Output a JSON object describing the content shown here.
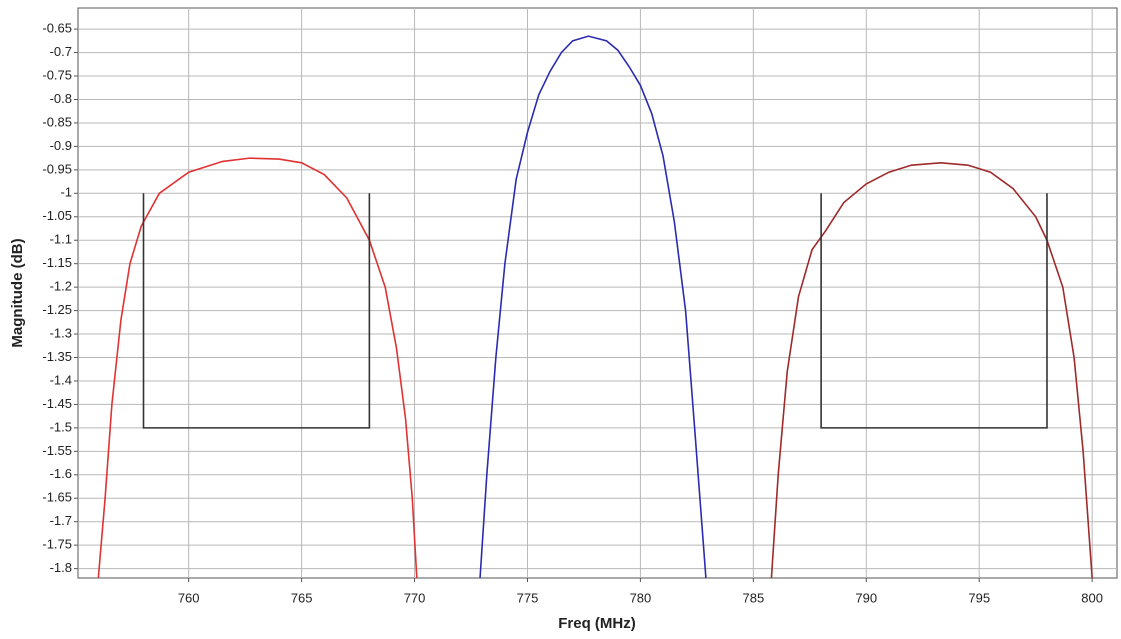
{
  "chart_data": {
    "type": "line",
    "x_label": "Freq (MHz)",
    "y_label": "Magnitude (dB)",
    "xlim": [
      755.1,
      801.1
    ],
    "ylim": [
      -1.82,
      -0.605
    ],
    "xticks": [
      760,
      765,
      770,
      775,
      780,
      785,
      790,
      795,
      800
    ],
    "yticks": [
      -0.65,
      -0.7,
      -0.75,
      -0.8,
      -0.85,
      -0.9,
      -0.95,
      -1,
      -1.05,
      -1.1,
      -1.15,
      -1.2,
      -1.25,
      -1.3,
      -1.35,
      -1.4,
      -1.45,
      -1.5,
      -1.55,
      -1.6,
      -1.65,
      -1.7,
      -1.75,
      -1.8
    ],
    "grid": true,
    "series": [
      {
        "color": "#e03232",
        "x": [
          756.0,
          756.3,
          756.6,
          757.0,
          757.4,
          757.9,
          758.7,
          760,
          761.5,
          762.7,
          764,
          765,
          766,
          767,
          768,
          768.7,
          769.2,
          769.6,
          769.9,
          770.1
        ],
        "values": [
          -1.82,
          -1.65,
          -1.45,
          -1.27,
          -1.15,
          -1.07,
          -1.0,
          -0.955,
          -0.932,
          -0.925,
          -0.927,
          -0.935,
          -0.96,
          -1.01,
          -1.1,
          -1.2,
          -1.33,
          -1.48,
          -1.65,
          -1.82
        ]
      },
      {
        "color": "#2b2bb0",
        "x": [
          772.9,
          773.2,
          773.6,
          774,
          774.5,
          775,
          775.5,
          776,
          776.5,
          777,
          777.7,
          778.5,
          779,
          779.5,
          780,
          780.5,
          781,
          781.5,
          782,
          782.4,
          782.9
        ],
        "values": [
          -1.82,
          -1.6,
          -1.35,
          -1.15,
          -0.97,
          -0.87,
          -0.79,
          -0.74,
          -0.7,
          -0.675,
          -0.665,
          -0.675,
          -0.695,
          -0.73,
          -0.77,
          -0.83,
          -0.92,
          -1.06,
          -1.25,
          -1.5,
          -1.82
        ]
      },
      {
        "color": "#9e2a2a",
        "x": [
          785.8,
          786.1,
          786.5,
          787,
          787.6,
          788.2,
          789,
          790,
          791,
          792,
          793.3,
          794.5,
          795.5,
          796.5,
          797.5,
          798,
          798.7,
          799.2,
          799.6,
          800
        ],
        "values": [
          -1.82,
          -1.6,
          -1.38,
          -1.22,
          -1.12,
          -1.08,
          -1.02,
          -0.98,
          -0.955,
          -0.94,
          -0.935,
          -0.94,
          -0.955,
          -0.99,
          -1.05,
          -1.1,
          -1.2,
          -1.35,
          -1.55,
          -1.82
        ]
      },
      {
        "color": "#333333",
        "x": [
          758,
          758,
          768,
          768
        ],
        "values": [
          -1,
          -1.5,
          -1.5,
          -1
        ]
      },
      {
        "color": "#333333",
        "x": [
          788,
          788,
          798,
          798
        ],
        "values": [
          -1,
          -1.5,
          -1.5,
          -1
        ]
      }
    ]
  }
}
